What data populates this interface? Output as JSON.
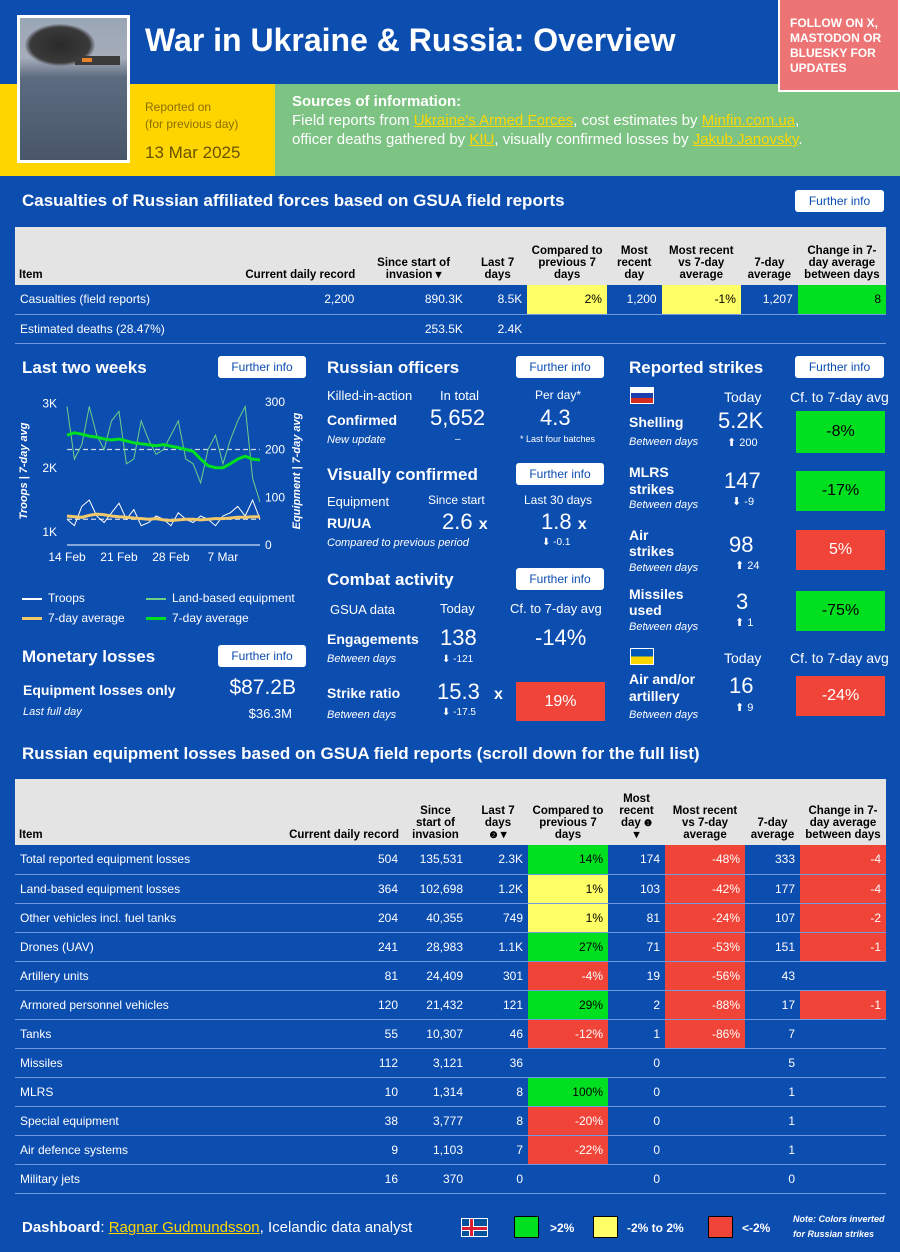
{
  "header": {
    "title": "War in Ukraine & Russia: Overview",
    "follow": "FOLLOW ON X, MASTODON OR BLUESKY FOR UPDATES",
    "reported_on": "Reported on",
    "for_prev_day": "(for previous day)",
    "date": "13 Mar 2025"
  },
  "sources": {
    "heading": "Sources of information:",
    "t1": "Field reports from ",
    "l1": "Ukraine's Armed Forces",
    "t2": ", cost estimates by ",
    "l2": "Minfin.com.ua",
    "t3": ",",
    "t4": "officer deaths gathered by ",
    "l3": "KIU",
    "t5": ", visually confirmed losses by ",
    "l4": "Jakub Janovsky",
    "t6": "."
  },
  "further": "Further info",
  "casualties": {
    "title": "Casualties of Russian affiliated forces based on GSUA field reports",
    "headers": [
      "Item",
      "Current daily record",
      "Since start of invasion",
      "Last 7 days",
      "Compared to previous 7 days",
      "Most recent day",
      "Most recent vs 7-day average",
      "7-day average",
      "Change in 7-day average between days"
    ],
    "rows": [
      [
        "Casualties (field reports)",
        "2,200",
        "890.3K",
        "8.5K",
        "2%",
        "1,200",
        "-1%",
        "1,207",
        "8"
      ],
      [
        "Estimated deaths (28.47%)",
        "",
        "253.5K",
        "2.4K",
        "",
        "",
        "",
        "",
        ""
      ]
    ]
  },
  "two_weeks": {
    "title": "Last two weeks",
    "y_left": "Troops | 7-day avg",
    "y_right": "Equipment | 7-day avg",
    "left_ticks": [
      "3K",
      "2K",
      "1K"
    ],
    "right_ticks": [
      "300",
      "200",
      "100",
      "0"
    ],
    "x_ticks": [
      "14 Feb",
      "21 Feb",
      "28 Feb",
      "7 Mar"
    ],
    "legend": [
      "Troops",
      "Land-based equipment",
      "7-day average",
      "7-day average"
    ]
  },
  "chart_data": {
    "type": "line",
    "x": [
      "14 Feb",
      "15 Feb",
      "16 Feb",
      "17 Feb",
      "18 Feb",
      "19 Feb",
      "20 Feb",
      "21 Feb",
      "22 Feb",
      "23 Feb",
      "24 Feb",
      "25 Feb",
      "26 Feb",
      "27 Feb",
      "28 Feb",
      "1 Mar",
      "2 Mar",
      "3 Mar",
      "4 Mar",
      "5 Mar",
      "6 Mar",
      "7 Mar",
      "8 Mar",
      "9 Mar",
      "10 Mar",
      "11 Mar",
      "12 Mar"
    ],
    "series": [
      {
        "name": "Troops",
        "axis": "left",
        "values": [
          1200,
          1100,
          1400,
          1500,
          1250,
          1150,
          1300,
          1450,
          1200,
          1350,
          1100,
          1150,
          1250,
          1200,
          1100,
          1300,
          1200,
          1150,
          1250,
          1200,
          1100,
          1250,
          1300,
          1400,
          1250,
          1500,
          1200
        ]
      },
      {
        "name": "Land-based equipment",
        "axis": "right",
        "values": [
          290,
          180,
          210,
          290,
          230,
          200,
          260,
          280,
          170,
          180,
          260,
          220,
          190,
          200,
          230,
          260,
          180,
          170,
          130,
          200,
          230,
          170,
          220,
          260,
          290,
          140,
          90
        ]
      },
      {
        "name": "7-day average",
        "axis": "left",
        "values": [
          1250,
          1240,
          1230,
          1260,
          1280,
          1270,
          1250,
          1240,
          1230,
          1220,
          1210,
          1200,
          1210,
          1190,
          1180,
          1190,
          1200,
          1200,
          1190,
          1200,
          1210,
          1210,
          1220,
          1230,
          1230,
          1240,
          1240
        ]
      },
      {
        "name": "7-day average",
        "axis": "right",
        "values": [
          230,
          235,
          232,
          228,
          226,
          222,
          220,
          222,
          218,
          214,
          212,
          210,
          208,
          210,
          207,
          204,
          200,
          196,
          180,
          166,
          162,
          162,
          170,
          180,
          186,
          180,
          178
        ]
      }
    ],
    "left_ylim": [
      800,
      3100
    ],
    "right_ylim": [
      0,
      310
    ]
  },
  "monetary": {
    "title": "Monetary losses",
    "label": "Equipment losses only",
    "value": "$87.2B",
    "sub": "Last full day",
    "delta": "$36.3M"
  },
  "officers": {
    "title": "Russian officers",
    "kia": "Killed-in-action",
    "in_total": "In total",
    "per_day": "Per day*",
    "confirmed": "Confirmed",
    "total": "5,652",
    "rate": "4.3",
    "new_update": "New update",
    "dash": "–",
    "note": "* Last four batches"
  },
  "visual": {
    "title": "Visually confirmed",
    "equipment": "Equipment",
    "since_start": "Since start",
    "last30": "Last 30 days",
    "ratio_lbl": "RU/UA",
    "v1": "2.6",
    "v2": "1.8",
    "x": "x",
    "compared": "Compared to previous period",
    "delta": "-0.1"
  },
  "combat": {
    "title": "Combat activity",
    "gsua": "GSUA data",
    "today": "Today",
    "cf": "Cf. to 7-day avg",
    "eng": "Engagements",
    "eng_val": "138",
    "eng_pct": "-14%",
    "between": "Between days",
    "eng_delta": "-121",
    "strike": "Strike ratio",
    "strike_val": "15.3",
    "strike_pct": "19%",
    "strike_delta": "-17.5"
  },
  "strikes": {
    "title": "Reported strikes",
    "today": "Today",
    "cf": "Cf. to 7-day avg",
    "between": "Between days",
    "rows": [
      {
        "label": "Shelling",
        "val": "5.2K",
        "delta": "200",
        "pct": "-8%"
      },
      {
        "label": "MLRS strikes",
        "val": "147",
        "delta": "-9",
        "pct": "-17%"
      },
      {
        "label": "Air strikes",
        "val": "98",
        "delta": "24",
        "pct": "5%"
      },
      {
        "label": "Missiles used",
        "val": "3",
        "delta": "1",
        "pct": "-75%"
      }
    ],
    "ua": {
      "label": "Air and/or artillery",
      "val": "16",
      "delta": "9",
      "pct": "-24%"
    }
  },
  "equip": {
    "title": "Russian equipment losses based on GSUA field reports (scroll down for the full list)",
    "headers": [
      "Item",
      "Current daily record",
      "Since start of invasion",
      "Last 7 days",
      "Compared to previous 7 days",
      "Most recent day",
      "Most recent vs 7-day average",
      "7-day average",
      "Change in 7-day average between days"
    ],
    "rows": [
      [
        "Total reported equipment losses",
        "504",
        "135,531",
        "2.3K",
        "14%",
        "174",
        "-48%",
        "333",
        "-4"
      ],
      [
        "Land-based equipment losses",
        "364",
        "102,698",
        "1.2K",
        "1%",
        "103",
        "-42%",
        "177",
        "-4"
      ],
      [
        "Other vehicles incl. fuel tanks",
        "204",
        "40,355",
        "749",
        "1%",
        "81",
        "-24%",
        "107",
        "-2"
      ],
      [
        "Drones (UAV)",
        "241",
        "28,983",
        "1.1K",
        "27%",
        "71",
        "-53%",
        "151",
        "-1"
      ],
      [
        "Artillery units",
        "81",
        "24,409",
        "301",
        "-4%",
        "19",
        "-56%",
        "43",
        ""
      ],
      [
        "Armored personnel vehicles",
        "120",
        "21,432",
        "121",
        "29%",
        "2",
        "-88%",
        "17",
        "-1"
      ],
      [
        "Tanks",
        "55",
        "10,307",
        "46",
        "-12%",
        "1",
        "-86%",
        "7",
        ""
      ],
      [
        "Missiles",
        "112",
        "3,121",
        "36",
        "",
        "0",
        "",
        "5",
        ""
      ],
      [
        "MLRS",
        "10",
        "1,314",
        "8",
        "100%",
        "0",
        "",
        "1",
        ""
      ],
      [
        "Special equipment",
        "38",
        "3,777",
        "8",
        "-20%",
        "0",
        "",
        "1",
        ""
      ],
      [
        "Air defence systems",
        "9",
        "1,103",
        "7",
        "-22%",
        "0",
        "",
        "1",
        ""
      ],
      [
        "Military jets",
        "16",
        "370",
        "0",
        "",
        "0",
        "",
        "0",
        ""
      ]
    ],
    "colors": [
      [
        "g",
        "r",
        "r"
      ],
      [
        "y",
        "r",
        "r"
      ],
      [
        "y",
        "r",
        "r"
      ],
      [
        "g",
        "r",
        "r"
      ],
      [
        "r",
        "r",
        ""
      ],
      [
        "g",
        "r",
        "r"
      ],
      [
        "r",
        "r",
        ""
      ],
      [
        "",
        "",
        ""
      ],
      [
        "g",
        "",
        ""
      ],
      [
        "r",
        "",
        ""
      ],
      [
        "r",
        "",
        ""
      ],
      [
        "",
        "",
        ""
      ]
    ]
  },
  "footer": {
    "dash": "Dashboard",
    "name": "Ragnar Gudmundsson",
    "role": ", Icelandic data analyst",
    "l1": ">2%",
    "l2": "-2% to 2%",
    "l3": "<-2%",
    "note": "Note: Colors inverted for Russian strikes"
  }
}
